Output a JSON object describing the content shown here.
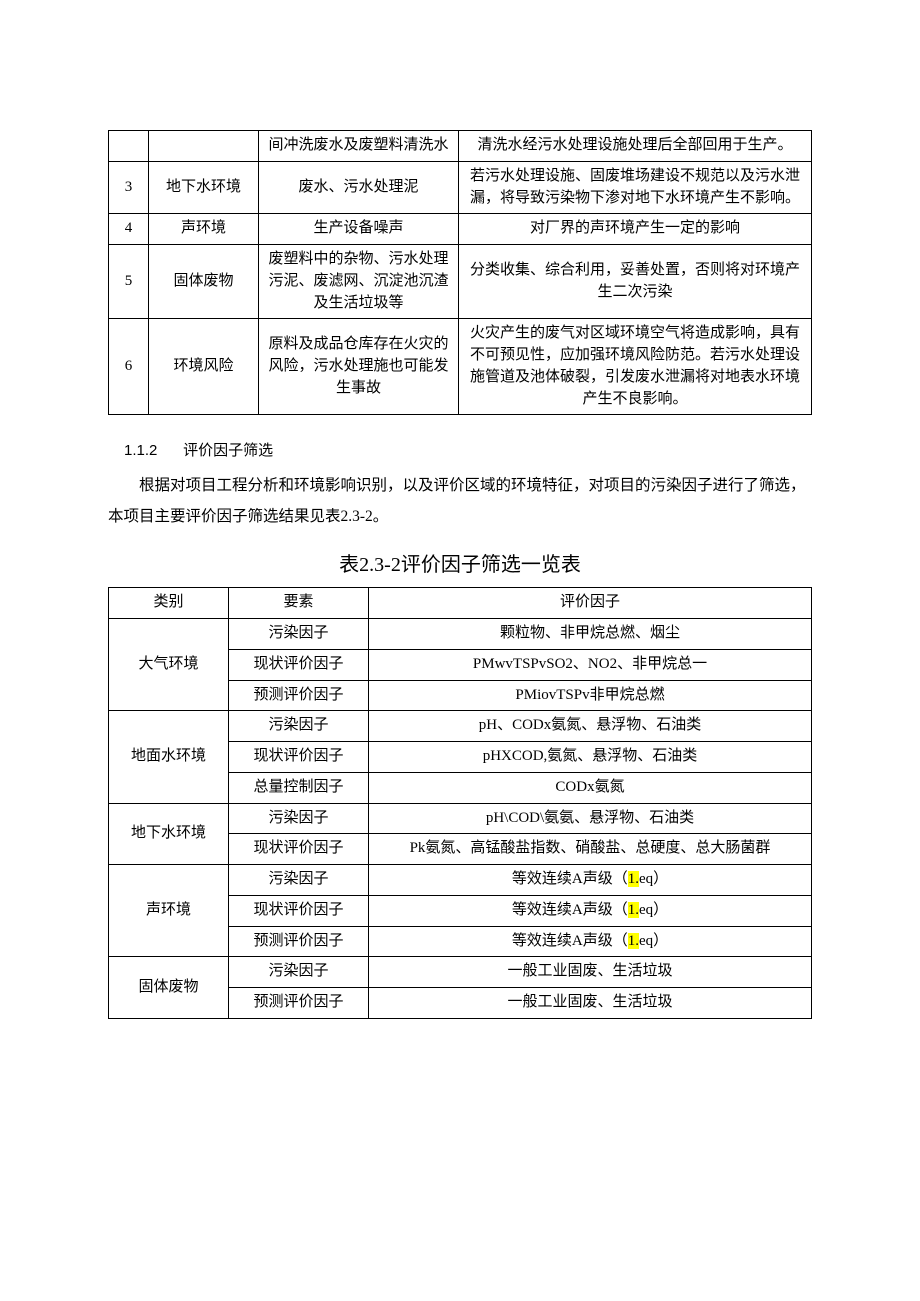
{
  "table1": {
    "rows": [
      {
        "n": "",
        "env": "",
        "src": "间冲洗废水及废塑料清洗水",
        "eff": "清洗水经污水处理设施处理后全部回用于生产。"
      },
      {
        "n": "3",
        "env": "地下水环境",
        "src": "废水、污水处理泥",
        "eff": "若污水处理设施、固废堆场建设不规范以及污水泄漏，将导致污染物下渗对地下水环境产生不影响。"
      },
      {
        "n": "4",
        "env": "声环境",
        "src": "生产设备噪声",
        "eff": "对厂界的声环境产生一定的影响"
      },
      {
        "n": "5",
        "env": "固体废物",
        "src": "废塑料中的杂物、污水处理污泥、废滤网、沉淀池沉渣及生活垃圾等",
        "eff": "分类收集、综合利用，妥善处置，否则将对环境产生二次污染"
      },
      {
        "n": "6",
        "env": "环境风险",
        "src": "原料及成品仓库存在火灾的风险，污水处理施也可能发生事故",
        "eff": "火灾产生的废气对区域环境空气将造成影响，具有不可预见性，应加强环境风险防范。若污水处理设施管道及池体破裂，引发废水泄漏将对地表水环境产生不良影响。"
      }
    ]
  },
  "section": {
    "num": "1.1.2",
    "title": "评价因子筛选",
    "para1": "根据对项目工程分析和环境影响识别，以及评价区域的环境特征，对项目的污染因子进行了筛选，本项目主要评价因子筛选结果见表2.3-2。",
    "tableTitle": "表2.3-2评价因子筛选一览表"
  },
  "table2": {
    "headers": {
      "a": "类别",
      "b": "要素",
      "c": "评价因子"
    },
    "groups": [
      {
        "cat": "大气环境",
        "rows": [
          {
            "b": "污染因子",
            "c_pre": "颗粒物、非甲烷总燃、烟尘",
            "c_hl": "",
            "c_post": ""
          },
          {
            "b": "现状评价因子",
            "c_pre": "PMwvTSPvSO2、NO2、非甲烷总一",
            "c_hl": "",
            "c_post": ""
          },
          {
            "b": "预测评价因子",
            "c_pre": "PMiovTSPv非甲烷总燃",
            "c_hl": "",
            "c_post": ""
          }
        ]
      },
      {
        "cat": "地面水环境",
        "rows": [
          {
            "b": "污染因子",
            "c_pre": "pH、CODx氨氮、悬浮物、石油类",
            "c_hl": "",
            "c_post": ""
          },
          {
            "b": "现状评价因子",
            "c_pre": "pHXCOD,氨氮、悬浮物、石油类",
            "c_hl": "",
            "c_post": ""
          },
          {
            "b": "总量控制因子",
            "c_pre": "CODx氨氮",
            "c_hl": "",
            "c_post": ""
          }
        ]
      },
      {
        "cat": "地下水环境",
        "rows": [
          {
            "b": "污染因子",
            "c_pre": "pH\\COD\\氨氨、悬浮物、石油类",
            "c_hl": "",
            "c_post": ""
          },
          {
            "b": "现状评价因子",
            "c_pre": "Pk氨氮、高锰酸盐指数、硝酸盐、总硬度、总大肠菌群",
            "c_hl": "",
            "c_post": ""
          }
        ]
      },
      {
        "cat": "声环境",
        "rows": [
          {
            "b": "污染因子",
            "c_pre": "等效连续A声级（",
            "c_hl": "1.",
            "c_post": "eq）"
          },
          {
            "b": "现状评价因子",
            "c_pre": "等效连续A声级（",
            "c_hl": "1.",
            "c_post": "eq）"
          },
          {
            "b": "预测评价因子",
            "c_pre": "等效连续A声级（",
            "c_hl": "1.",
            "c_post": "eq）"
          }
        ]
      },
      {
        "cat": "固体废物",
        "rows": [
          {
            "b": "污染因子",
            "c_pre": "一般工业固废、生活垃圾",
            "c_hl": "",
            "c_post": ""
          },
          {
            "b": "预测评价因子",
            "c_pre": "一般工业固废、生活垃圾",
            "c_hl": "",
            "c_post": ""
          }
        ]
      }
    ]
  }
}
